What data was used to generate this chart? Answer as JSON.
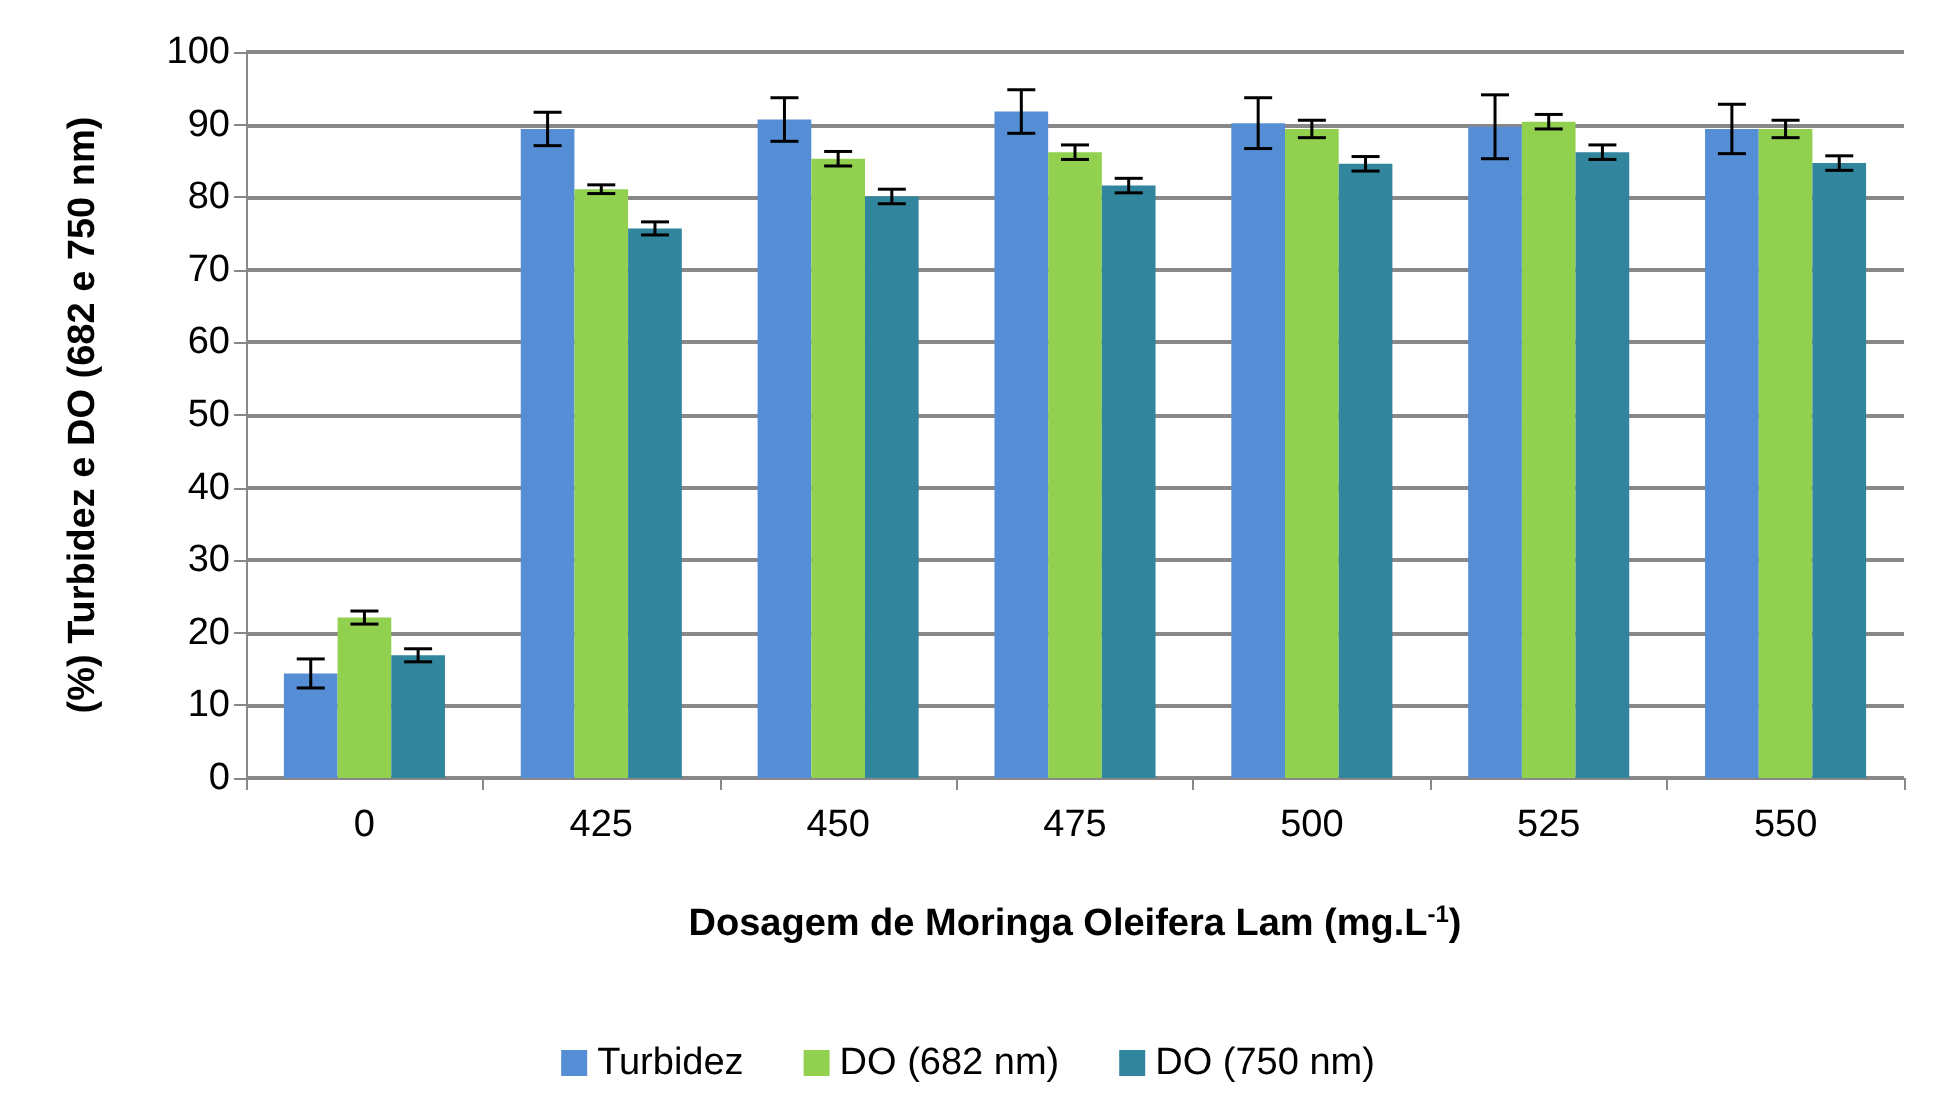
{
  "chart_data": {
    "type": "bar",
    "xlabel": "Dosagem de Moringa Oleifera Lam (mg.L$^{-1}$)",
    "ylabel": "(%) Turbidez e DO (682 e 750 nm)",
    "categories": [
      "0",
      "425",
      "450",
      "475",
      "500",
      "525",
      "550"
    ],
    "series": [
      {
        "name": "Turbidez",
        "color": "#558ed5",
        "values": [
          14.4,
          89.4,
          90.7,
          91.8,
          90.2,
          89.7,
          89.4
        ],
        "errors": [
          2,
          2.3,
          3,
          3,
          3.5,
          4.4,
          3.4
        ]
      },
      {
        "name": "DO (682 nm)",
        "color": "#92d050",
        "values": [
          22.1,
          81.1,
          85.3,
          86.2,
          89.4,
          90.4,
          89.4
        ],
        "errors": [
          0.9,
          0.6,
          1,
          1,
          1.2,
          1,
          1.2
        ]
      },
      {
        "name": "DO (750 nm)",
        "color": "#31859c",
        "values": [
          16.9,
          75.7,
          80.1,
          81.6,
          84.6,
          86.2,
          84.7
        ],
        "errors": [
          0.9,
          0.9,
          1,
          1,
          1,
          1,
          1
        ]
      }
    ],
    "ylim": [
      0,
      100
    ],
    "yticks": [
      0,
      10,
      20,
      30,
      40,
      50,
      60,
      70,
      80,
      90,
      100
    ],
    "grid": "y",
    "legend": "bottom"
  }
}
